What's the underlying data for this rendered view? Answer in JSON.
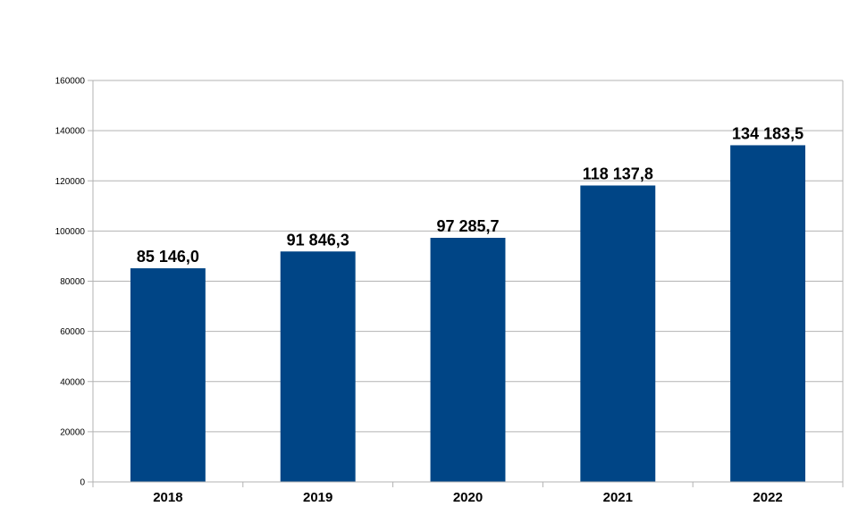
{
  "chart_data": {
    "type": "bar",
    "categories": [
      "2018",
      "2019",
      "2020",
      "2021",
      "2022"
    ],
    "values": [
      85146.0,
      91846.3,
      97285.7,
      118137.8,
      134183.5
    ],
    "data_labels": [
      "85 146,0",
      "91 846,3",
      "97 285,7",
      "118 137,8",
      "134 183,5"
    ],
    "y_ticks": [
      "0",
      "20000",
      "40000",
      "60000",
      "80000",
      "100000",
      "120000",
      "140000",
      "160000"
    ],
    "ylim": [
      0,
      160000
    ],
    "grid": true,
    "legend": "none",
    "bar_color": "#004586",
    "grid_color": "#b3b3b3"
  }
}
